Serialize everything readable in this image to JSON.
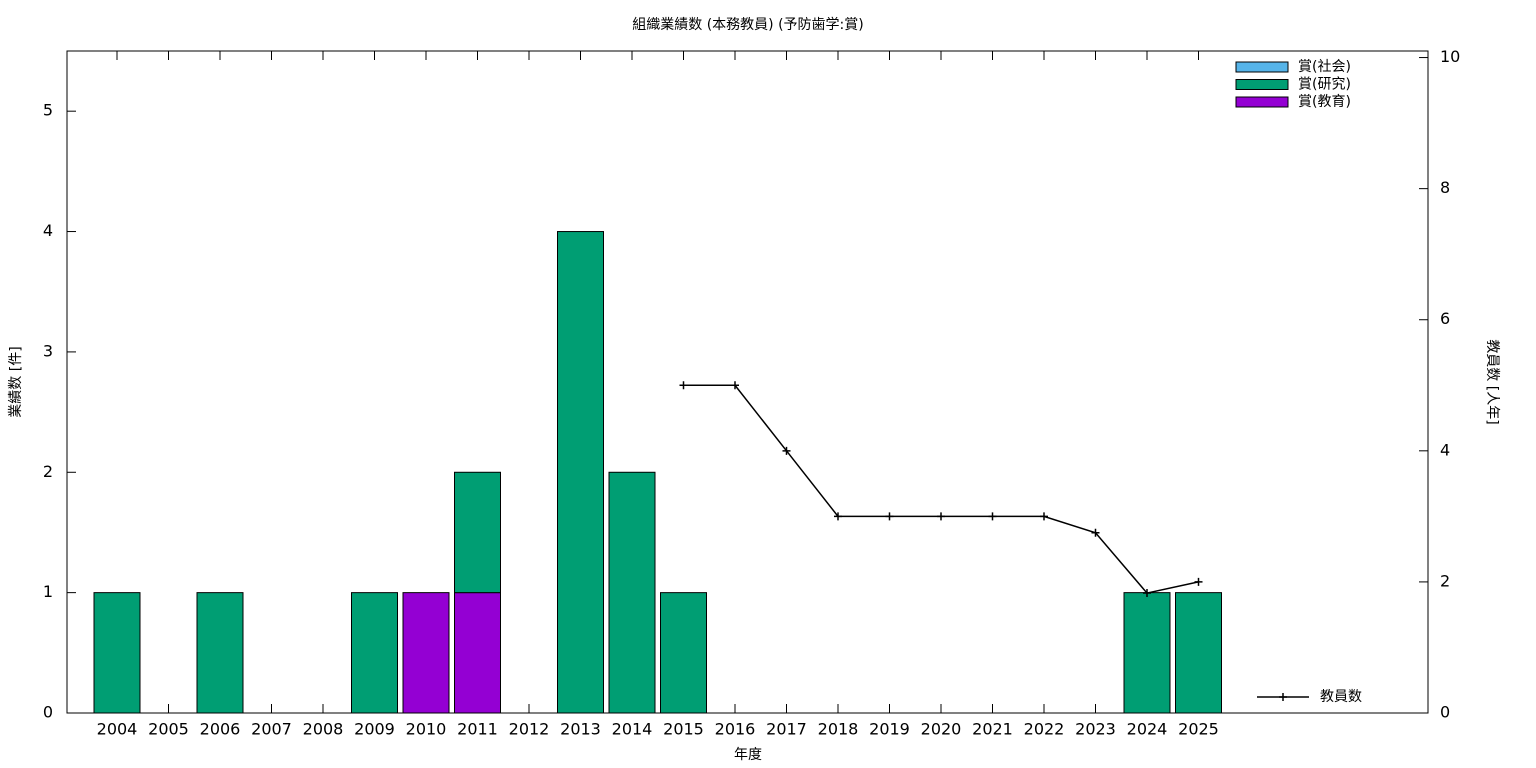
{
  "chart_data": {
    "type": "bar",
    "title": "組織業績数 (本務教員) (予防歯学:賞)",
    "x_label": "年度",
    "y_label": "業績数 [件]",
    "y2_label": "教員数 [人年]",
    "categories": [
      "2004",
      "2005",
      "2006",
      "2007",
      "2008",
      "2009",
      "2010",
      "2011",
      "2012",
      "2013",
      "2014",
      "2015",
      "2016",
      "2017",
      "2018",
      "2019",
      "2020",
      "2021",
      "2022",
      "2023",
      "2024",
      "2025"
    ],
    "stacked": true,
    "series": [
      {
        "name": "賞(社会)",
        "color": "#56b4e9",
        "values": [
          0,
          0,
          0,
          0,
          0,
          0,
          0,
          0,
          0,
          0,
          0,
          0,
          0,
          0,
          0,
          0,
          0,
          0,
          0,
          0,
          0,
          0
        ]
      },
      {
        "name": "賞(研究)",
        "color": "#009e73",
        "values": [
          1,
          0,
          1,
          0,
          0,
          1,
          0,
          1,
          0,
          4,
          2,
          1,
          0,
          0,
          0,
          0,
          0,
          0,
          0,
          0,
          1,
          1
        ]
      },
      {
        "name": "賞(教育)",
        "color": "#9400d3",
        "values": [
          0,
          0,
          0,
          0,
          0,
          0,
          1,
          1,
          0,
          0,
          0,
          0,
          0,
          0,
          0,
          0,
          0,
          0,
          0,
          0,
          0,
          0
        ]
      },
      {
        "name": "教員数",
        "type": "line",
        "axis": "y2",
        "color": "#000000",
        "values": [
          null,
          null,
          null,
          null,
          null,
          null,
          null,
          null,
          null,
          null,
          null,
          5,
          5,
          4,
          3,
          3,
          3,
          3,
          3,
          2.75,
          1.83,
          2
        ]
      }
    ],
    "ylim": [
      0,
      5.5
    ],
    "yticks": [
      0,
      1,
      2,
      3,
      4,
      5
    ],
    "y2lim": [
      0,
      10.1
    ],
    "y2ticks": [
      0,
      2,
      4,
      6,
      8,
      10
    ]
  }
}
